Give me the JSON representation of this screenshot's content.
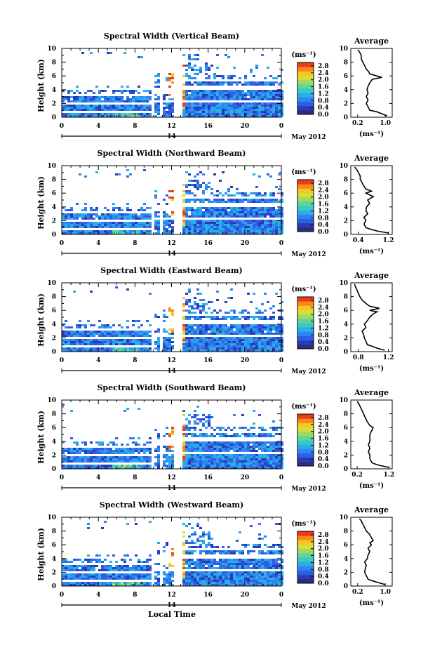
{
  "figure": {
    "xlabel": "Local Time",
    "date_label": "May 2012",
    "day_label": "14",
    "average_title": "Average",
    "colorbar_unit": "(ms⁻¹)",
    "average_unit": "(ms⁻¹)"
  },
  "chart_data": [
    {
      "type": "heatmap",
      "title": "Spectral Width (Vertical Beam)",
      "ylabel": "Height (km)",
      "x_ticks": [
        "0",
        "4",
        "8",
        "12",
        "16",
        "20",
        "0"
      ],
      "y_ticks": [
        "0",
        "2",
        "4",
        "6",
        "8",
        "10"
      ],
      "xlim": [
        0,
        24
      ],
      "ylim": [
        0,
        10
      ],
      "colorbar_ticks": [
        "0.0",
        "0.4",
        "0.8",
        "1.2",
        "1.6",
        "2.0",
        "2.4",
        "2.8"
      ],
      "colorbar_range": [
        0,
        3.0
      ],
      "average": {
        "title": "Average",
        "x_ticks": [
          "0.2",
          "1.0"
        ],
        "xlim": [
          0.0,
          1.2
        ],
        "height_km": [
          0.2,
          0.5,
          0.8,
          1.0,
          1.5,
          2.0,
          2.5,
          3.0,
          3.5,
          4.0,
          4.5,
          5.0,
          5.5,
          5.8,
          6.0,
          6.3,
          6.6,
          7.0,
          7.5,
          8.0,
          8.5,
          9.0,
          9.5,
          9.8
        ],
        "value": [
          1.05,
          0.9,
          0.75,
          0.55,
          0.5,
          0.45,
          0.5,
          0.45,
          0.5,
          0.47,
          0.5,
          0.55,
          0.62,
          0.9,
          0.75,
          0.55,
          0.52,
          0.45,
          0.4,
          0.35,
          0.3,
          0.3,
          0.25,
          0.2
        ]
      }
    },
    {
      "type": "heatmap",
      "title": "Spectral Width (Northward Beam)",
      "ylabel": "Height (km)",
      "x_ticks": [
        "0",
        "4",
        "8",
        "12",
        "16",
        "20",
        "0"
      ],
      "y_ticks": [
        "0",
        "2",
        "4",
        "6",
        "8",
        "10"
      ],
      "xlim": [
        0,
        24
      ],
      "ylim": [
        0,
        10
      ],
      "colorbar_ticks": [
        "0.0",
        "0.4",
        "0.8",
        "1.2",
        "1.6",
        "2.0",
        "2.4",
        "2.8"
      ],
      "colorbar_range": [
        0,
        3.0
      ],
      "average": {
        "title": "Average",
        "x_ticks": [
          "0.4",
          "1.2"
        ],
        "xlim": [
          0.2,
          1.3
        ],
        "height_km": [
          0.2,
          0.5,
          0.8,
          1.0,
          1.5,
          2.0,
          2.5,
          3.0,
          3.5,
          4.0,
          4.5,
          5.0,
          5.5,
          6.0,
          6.3,
          6.6,
          7.0,
          7.5,
          8.0,
          8.5,
          9.0,
          9.5,
          9.8
        ],
        "value": [
          1.2,
          0.9,
          0.7,
          0.6,
          0.55,
          0.6,
          0.55,
          0.65,
          0.6,
          0.62,
          0.7,
          0.65,
          0.8,
          0.6,
          0.75,
          0.6,
          0.55,
          0.5,
          0.45,
          0.45,
          0.4,
          0.35,
          0.3
        ]
      }
    },
    {
      "type": "heatmap",
      "title": "Spectral Width (Eastward Beam)",
      "ylabel": "Height (km)",
      "x_ticks": [
        "0",
        "4",
        "8",
        "12",
        "16",
        "20",
        "0"
      ],
      "y_ticks": [
        "0",
        "2",
        "4",
        "6",
        "8",
        "10"
      ],
      "xlim": [
        0,
        24
      ],
      "ylim": [
        0,
        10
      ],
      "colorbar_ticks": [
        "0.0",
        "0.4",
        "0.8",
        "1.2",
        "1.6",
        "2.0",
        "2.4",
        "2.8"
      ],
      "colorbar_range": [
        0,
        3.0
      ],
      "average": {
        "title": "Average",
        "x_ticks": [
          "0.8",
          "1.2"
        ],
        "xlim": [
          0.7,
          1.25
        ],
        "height_km": [
          0.2,
          0.5,
          0.8,
          1.0,
          1.5,
          2.0,
          2.5,
          3.0,
          3.5,
          4.0,
          4.5,
          5.0,
          5.5,
          5.8,
          6.0,
          6.3,
          6.6,
          7.0,
          7.5,
          8.0,
          8.5,
          9.0,
          9.5,
          9.8
        ],
        "value": [
          1.15,
          1.05,
          0.98,
          0.92,
          0.9,
          0.88,
          0.87,
          0.85,
          0.9,
          0.88,
          0.92,
          0.95,
          1.0,
          1.05,
          0.95,
          1.08,
          0.95,
          0.9,
          0.85,
          0.82,
          0.8,
          0.78,
          0.76,
          0.75
        ]
      }
    },
    {
      "type": "heatmap",
      "title": "Spectral Width (Southward Beam)",
      "ylabel": "Height (km)",
      "x_ticks": [
        "0",
        "4",
        "8",
        "12",
        "16",
        "20",
        "0"
      ],
      "y_ticks": [
        "0",
        "2",
        "4",
        "6",
        "8",
        "10"
      ],
      "xlim": [
        0,
        24
      ],
      "ylim": [
        0,
        10
      ],
      "colorbar_ticks": [
        "0.0",
        "0.4",
        "0.8",
        "1.2",
        "1.6",
        "2.0",
        "2.4",
        "2.8"
      ],
      "colorbar_range": [
        0,
        3.0
      ],
      "average": {
        "title": "Average",
        "x_ticks": [
          "0.2",
          "1.2"
        ],
        "xlim": [
          0.0,
          1.3
        ],
        "height_km": [
          0.2,
          0.5,
          0.8,
          1.0,
          1.5,
          2.0,
          2.5,
          3.0,
          3.5,
          4.0,
          4.5,
          5.0,
          5.5,
          6.0,
          6.3,
          6.6,
          7.0,
          7.5,
          8.0,
          8.5,
          9.0,
          9.5,
          9.8
        ],
        "value": [
          1.2,
          0.9,
          0.7,
          0.65,
          0.6,
          0.6,
          0.55,
          0.6,
          0.55,
          0.6,
          0.6,
          0.6,
          0.65,
          0.7,
          0.6,
          0.55,
          0.5,
          0.45,
          0.4,
          0.35,
          0.3,
          0.25,
          0.2
        ]
      }
    },
    {
      "type": "heatmap",
      "title": "Spectral Width (Westward Beam)",
      "ylabel": "Height (km)",
      "x_ticks": [
        "0",
        "4",
        "8",
        "12",
        "16",
        "20",
        "0"
      ],
      "y_ticks": [
        "0",
        "2",
        "4",
        "6",
        "8",
        "10"
      ],
      "xlim": [
        0,
        24
      ],
      "ylim": [
        0,
        10
      ],
      "colorbar_ticks": [
        "0.0",
        "0.4",
        "0.8",
        "1.2",
        "1.6",
        "2.0",
        "2.4",
        "2.8"
      ],
      "colorbar_range": [
        0,
        3.0
      ],
      "average": {
        "title": "Average",
        "x_ticks": [
          "0.2",
          "1.0"
        ],
        "xlim": [
          0.0,
          1.2
        ],
        "height_km": [
          0.2,
          0.5,
          0.8,
          1.0,
          1.5,
          2.0,
          2.5,
          3.0,
          3.5,
          4.0,
          4.5,
          5.0,
          5.5,
          6.0,
          6.3,
          6.6,
          7.0,
          7.5,
          8.0,
          8.5,
          9.0,
          9.5,
          9.8
        ],
        "value": [
          1.0,
          0.8,
          0.6,
          0.5,
          0.45,
          0.4,
          0.42,
          0.45,
          0.4,
          0.48,
          0.5,
          0.55,
          0.5,
          0.6,
          0.55,
          0.65,
          0.6,
          0.55,
          0.45,
          0.4,
          0.35,
          0.3,
          0.25
        ]
      }
    }
  ]
}
